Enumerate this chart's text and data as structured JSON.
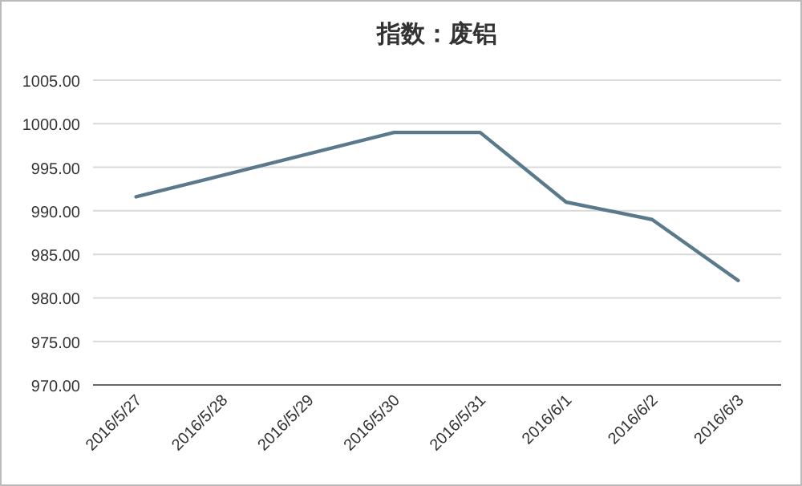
{
  "chart_data": {
    "type": "line",
    "title": "指数：废铝",
    "x": [
      "2016-05-27",
      "2016-05-30",
      "2016-05-31",
      "2016-06-01",
      "2016-06-02",
      "2016-06-03"
    ],
    "series": [
      {
        "color": "#5a7a8c",
        "values": [
          991.6,
          999,
          999,
          991,
          989,
          982
        ]
      }
    ],
    "xlim": [
      "2016-05-26T12:00",
      "2016-06-03T12:00"
    ],
    "xticks": [
      {
        "value": "2016-05-27",
        "label": "2016/5/27"
      },
      {
        "value": "2016-05-28",
        "label": "2016/5/28"
      },
      {
        "value": "2016-05-29",
        "label": "2016/5/29"
      },
      {
        "value": "2016-05-30",
        "label": "2016/5/30"
      },
      {
        "value": "2016-05-31",
        "label": "2016/5/31"
      },
      {
        "value": "2016-06-01",
        "label": "2016/6/1"
      },
      {
        "value": "2016-06-02",
        "label": "2016/6/2"
      },
      {
        "value": "2016-06-03",
        "label": "2016/6/3"
      }
    ],
    "ylim": [
      970,
      1005
    ],
    "yticks": [
      {
        "value": 970,
        "label": "970.00"
      },
      {
        "value": 975,
        "label": "975.00"
      },
      {
        "value": 980,
        "label": "980.00"
      },
      {
        "value": 985,
        "label": "985.00"
      },
      {
        "value": 990,
        "label": "990.00"
      },
      {
        "value": 995,
        "label": "995.00"
      },
      {
        "value": 1000,
        "label": "1000.00"
      },
      {
        "value": 1005,
        "label": "1005.00"
      }
    ],
    "grid": "y",
    "marker": "none",
    "line_style": "solid"
  }
}
